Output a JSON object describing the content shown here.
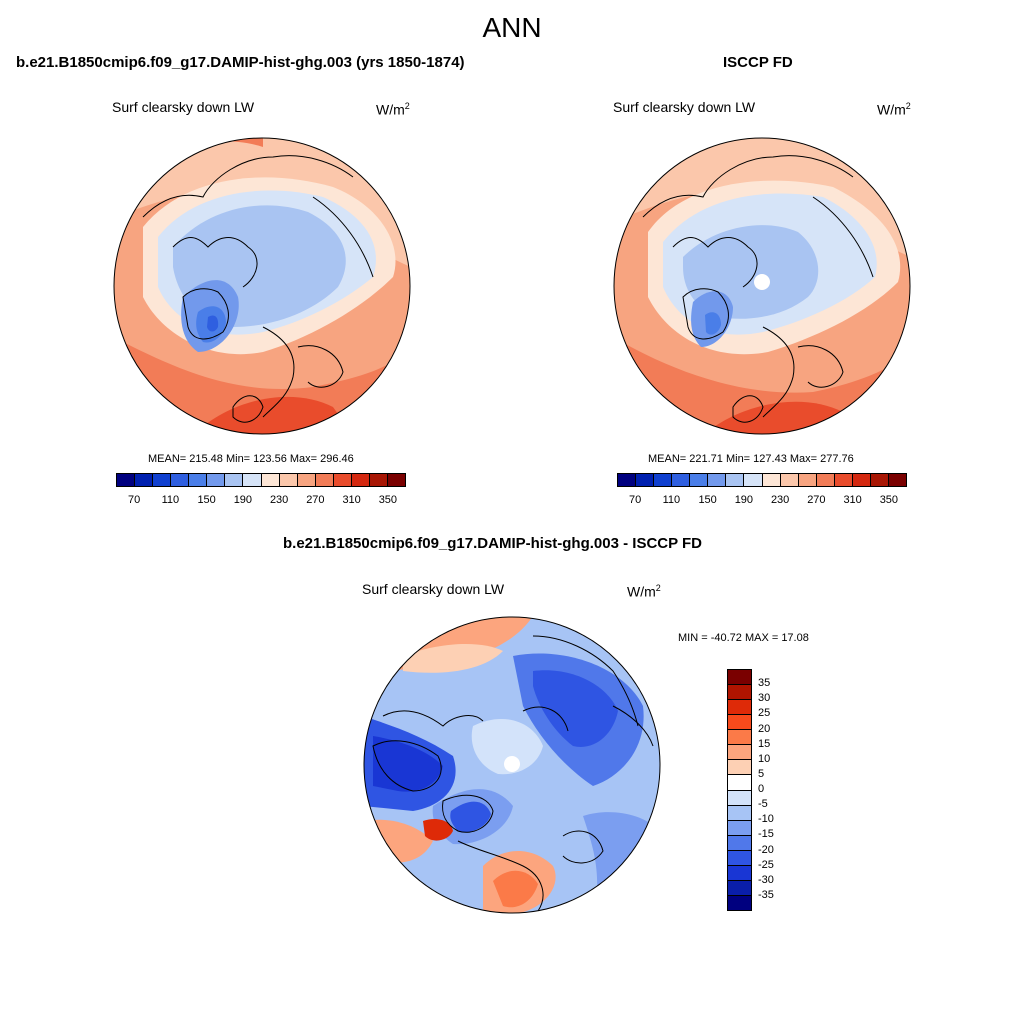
{
  "title": "ANN",
  "panels": [
    {
      "title": "b.e21.B1850cmip6.f09_g17.DAMIP-hist-ghg.003 (yrs 1850-1874)",
      "variable": "Surf clearsky down LW",
      "units": "W/m",
      "units_sup": "2",
      "stats": "MEAN= 215.48  Min= 123.56  Max= 296.46"
    },
    {
      "title": "ISCCP FD",
      "variable": "Surf clearsky down LW",
      "units": "W/m",
      "units_sup": "2",
      "stats": "MEAN= 221.71  Min= 127.43  Max= 277.76"
    },
    {
      "title": "b.e21.B1850cmip6.f09_g17.DAMIP-hist-ghg.003 - ISCCP FD",
      "variable": "Surf clearsky down LW",
      "units": "W/m",
      "units_sup": "2",
      "stats": "MIN = -40.72 MAX =  17.08"
    }
  ],
  "colorbar_abs": {
    "colors": [
      "#00007f",
      "#0020b0",
      "#1040d0",
      "#2f5fe0",
      "#4a7ee8",
      "#7299ec",
      "#a9c4f2",
      "#d6e4f8",
      "#fde6d6",
      "#fbc7ab",
      "#f7a480",
      "#f27c57",
      "#e94c2c",
      "#d42810",
      "#a81604",
      "#7a0000"
    ],
    "ticks": [
      "70",
      "110",
      "150",
      "190",
      "230",
      "270",
      "310",
      "350"
    ]
  },
  "colorbar_diff": {
    "colors": [
      "#7a0000",
      "#b01400",
      "#de2a08",
      "#f74a1c",
      "#fb7a48",
      "#fca57e",
      "#fdd0b4",
      "#ffffff",
      "#d3e3fa",
      "#a7c4f5",
      "#7b9ef0",
      "#5078ea",
      "#2f55e3",
      "#1936d4",
      "#0a1eaa",
      "#00007f"
    ],
    "ticks": [
      "35",
      "30",
      "25",
      "20",
      "15",
      "10",
      "5",
      "0",
      "-5",
      "-10",
      "-15",
      "-20",
      "-25",
      "-30",
      "-35"
    ]
  },
  "colors": {
    "accent_cold": "#1040d0",
    "accent_warm": "#e94c2c"
  }
}
